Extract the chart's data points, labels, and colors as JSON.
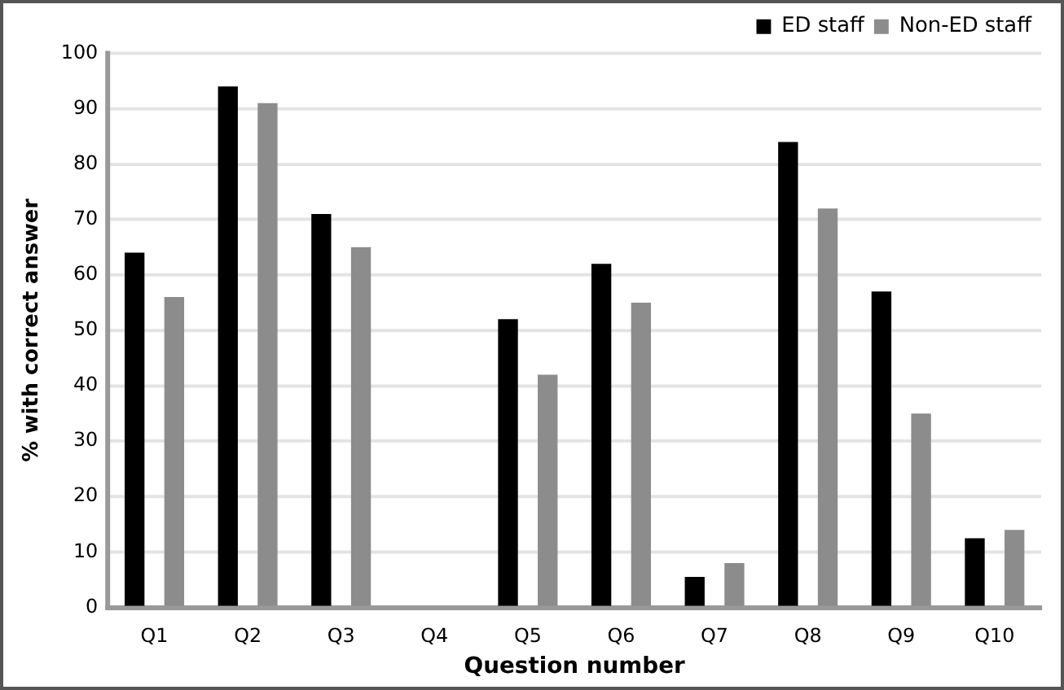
{
  "chart_data": {
    "type": "bar",
    "xlabel": "Question number",
    "ylabel": "% with correct answer",
    "categories": [
      "Q1",
      "Q2",
      "Q3",
      "Q4",
      "Q5",
      "Q6",
      "Q7",
      "Q8",
      "Q9",
      "Q10"
    ],
    "series": [
      {
        "name": "ED staff",
        "color": "#000000",
        "values": [
          64,
          94,
          71,
          0,
          52,
          62,
          5.5,
          84,
          57,
          12.5
        ]
      },
      {
        "name": "Non-ED staff",
        "color": "#8c8c8c",
        "values": [
          56,
          91,
          65,
          0,
          42,
          55,
          8,
          72,
          35,
          14
        ]
      }
    ],
    "ylim": [
      0,
      100
    ],
    "yticks": [
      0,
      10,
      20,
      30,
      40,
      50,
      60,
      70,
      80,
      90,
      100
    ],
    "grid": "y",
    "legend": "top"
  }
}
